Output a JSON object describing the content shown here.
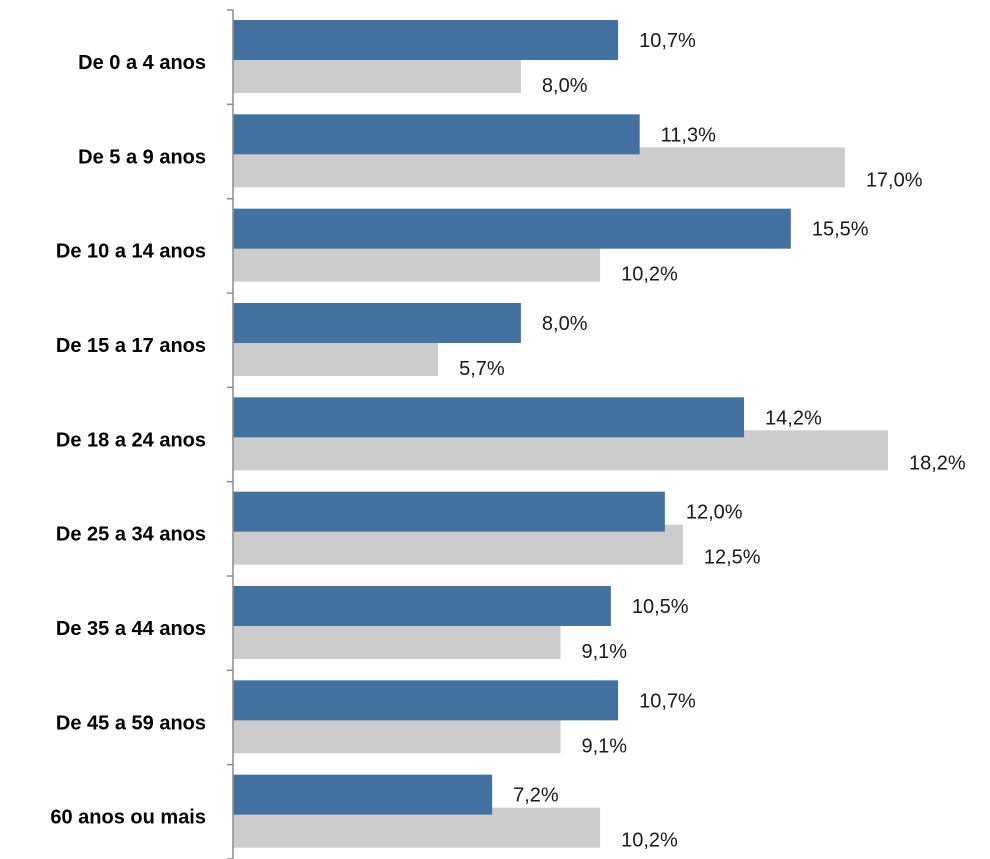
{
  "chart_data": {
    "type": "bar",
    "orientation": "horizontal",
    "categories": [
      "De 0 a 4 anos",
      "De 5 a 9 anos",
      "De 10 a 14 anos",
      "De 15 a 17 anos",
      "De 18 a 24 anos",
      "De 25 a 34 anos",
      "De 35 a 44 anos",
      "De 45 a 59 anos",
      "60 anos ou mais"
    ],
    "series": [
      {
        "color": "#4472A0",
        "values": [
          10.7,
          11.3,
          15.5,
          8.0,
          14.2,
          12.0,
          10.5,
          10.7,
          7.2
        ],
        "labels": [
          "10,7%",
          "11,3%",
          "15,5%",
          "8,0%",
          "14,2%",
          "12,0%",
          "10,5%",
          "10,7%",
          "7,2%"
        ]
      },
      {
        "color": "#CCCCCC",
        "values": [
          8.0,
          17.0,
          10.2,
          5.7,
          18.2,
          12.5,
          9.1,
          9.1,
          10.2
        ],
        "labels": [
          "8,0%",
          "17,0%",
          "10,2%",
          "5,7%",
          "18,2%",
          "12,5%",
          "9,1%",
          "9,1%",
          "10,2%"
        ]
      }
    ],
    "title": "",
    "xlabel": "",
    "ylabel": "",
    "xlim": [
      0,
      18.2
    ],
    "grid": false,
    "legend": "none"
  }
}
